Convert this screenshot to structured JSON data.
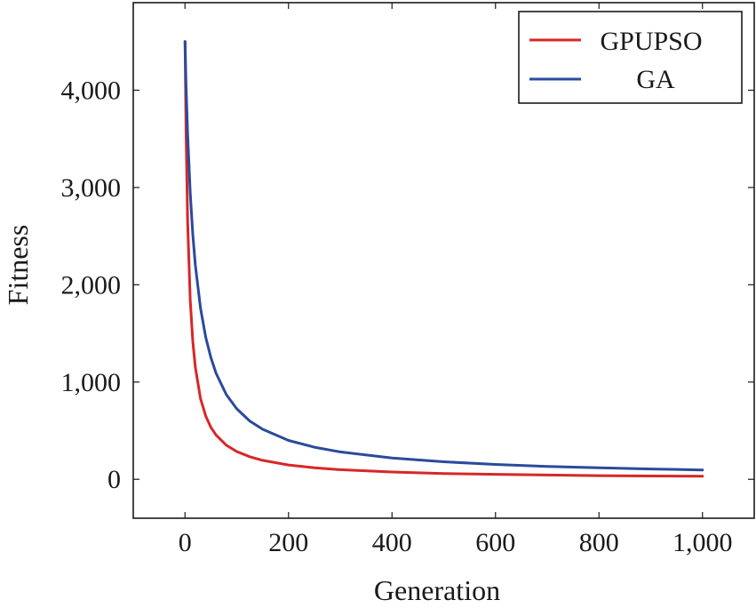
{
  "chart_data": {
    "type": "line",
    "title": "",
    "xlabel": "Generation",
    "ylabel": "Fitness",
    "xlim": [
      -100,
      1100
    ],
    "ylim": [
      -400,
      4900
    ],
    "xticks": [
      0,
      200,
      400,
      600,
      800,
      1000
    ],
    "xtick_labels": [
      "0",
      "200",
      "400",
      "600",
      "800",
      "1,000"
    ],
    "yticks": [
      0,
      1000,
      2000,
      3000,
      4000
    ],
    "ytick_labels": [
      "0",
      "1,000",
      "2,000",
      "3,000",
      "4,000"
    ],
    "grid": false,
    "legend_position": "top-right",
    "series": [
      {
        "name": "GPUPSO",
        "color": "#d62728",
        "x": [
          0,
          2,
          5,
          10,
          15,
          20,
          30,
          40,
          50,
          60,
          80,
          100,
          125,
          150,
          200,
          250,
          300,
          400,
          500,
          600,
          700,
          800,
          900,
          1000
        ],
        "y": [
          4500,
          3600,
          2650,
          1850,
          1420,
          1150,
          830,
          650,
          535,
          455,
          350,
          285,
          232,
          195,
          147,
          118,
          99,
          75,
          60,
          51,
          44,
          38,
          34,
          31
        ]
      },
      {
        "name": "GA",
        "color": "#2a4a9c",
        "x": [
          0,
          2,
          5,
          10,
          15,
          20,
          30,
          40,
          50,
          60,
          80,
          100,
          125,
          150,
          200,
          250,
          300,
          400,
          500,
          600,
          700,
          800,
          900,
          1000
        ],
        "y": [
          4500,
          4050,
          3550,
          2950,
          2520,
          2200,
          1760,
          1460,
          1250,
          1090,
          870,
          725,
          600,
          515,
          400,
          330,
          282,
          219,
          180,
          153,
          133,
          118,
          106,
          96
        ]
      }
    ]
  }
}
